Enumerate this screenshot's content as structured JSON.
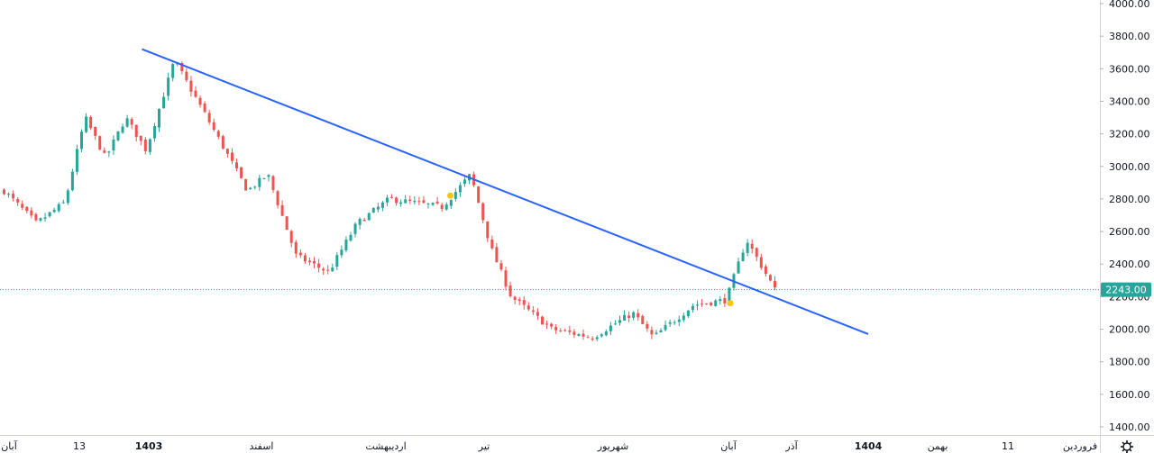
{
  "chart_data": {
    "type": "candlestick",
    "y_axis": {
      "ticks": [
        "4000.00",
        "3800.00",
        "3600.00",
        "3400.00",
        "3200.00",
        "3000.00",
        "2800.00",
        "2600.00",
        "2400.00",
        "2200.00",
        "2000.00",
        "1800.00",
        "1600.00",
        "1400.00"
      ],
      "ylim": [
        1380,
        4010
      ]
    },
    "x_axis": {
      "ticks": [
        {
          "label": "آبان",
          "bold": false
        },
        {
          "label": "13",
          "bold": false
        },
        {
          "label": "1403",
          "bold": true
        },
        {
          "label": "اسفند",
          "bold": false
        },
        {
          "label": "اردیبهشت",
          "bold": false
        },
        {
          "label": "تیر",
          "bold": false
        },
        {
          "label": "شهریور",
          "bold": false
        },
        {
          "label": "آبان",
          "bold": false
        },
        {
          "label": "آذر",
          "bold": false
        },
        {
          "label": "1404",
          "bold": true
        },
        {
          "label": "بهمن",
          "bold": false
        },
        {
          "label": "11",
          "bold": false
        },
        {
          "label": "فروردین",
          "bold": false
        }
      ]
    },
    "candle_count": 170,
    "price_path": [
      [
        0,
        2850
      ],
      [
        8,
        2650
      ],
      [
        15,
        2780
      ],
      [
        20,
        3300
      ],
      [
        25,
        3050
      ],
      [
        30,
        3300
      ],
      [
        35,
        3100
      ],
      [
        42,
        3650
      ],
      [
        50,
        3300
      ],
      [
        60,
        2850
      ],
      [
        65,
        2950
      ],
      [
        72,
        2450
      ],
      [
        80,
        2350
      ],
      [
        87,
        2650
      ],
      [
        95,
        2800
      ],
      [
        108,
        2750
      ],
      [
        115,
        2950
      ],
      [
        120,
        2500
      ],
      [
        125,
        2200
      ],
      [
        135,
        2000
      ],
      [
        145,
        1950
      ],
      [
        155,
        2100
      ],
      [
        160,
        1950
      ],
      [
        170,
        2150
      ],
      [
        178,
        2180
      ],
      [
        183,
        2550
      ],
      [
        190,
        2243
      ]
    ],
    "trendline": {
      "start": {
        "index": 34,
        "price": 3720
      },
      "end": {
        "index": 213,
        "price": 1970
      }
    },
    "markers": [
      {
        "index": 110,
        "price": 2820
      },
      {
        "index": 179,
        "price": 2160
      }
    ],
    "last_price": "2243.00",
    "up_color": "#26a69a",
    "down_color": "#ef5350",
    "trendline_color": "#2962ff",
    "marker_color": "#f5c518",
    "settings_icon": "gear-icon"
  }
}
